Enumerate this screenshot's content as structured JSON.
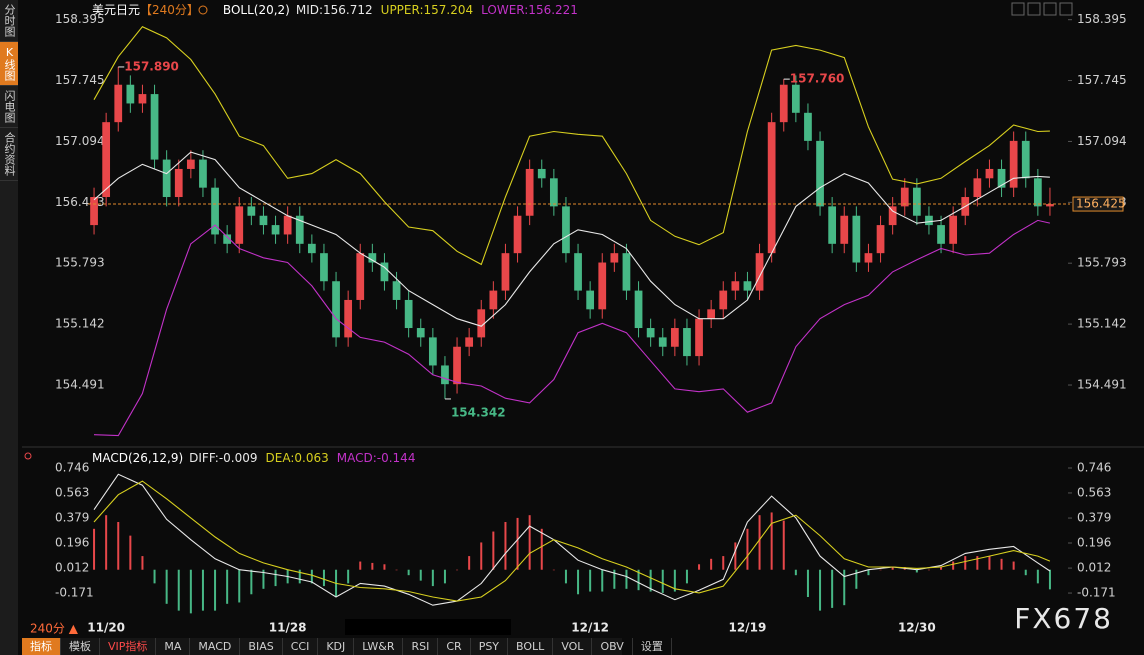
{
  "chart_data": [
    {
      "type": "candlestick",
      "title": "美元日元",
      "period": "【240分】",
      "indicator": "BOLL(20,2)",
      "up_color": "#e8474a",
      "down_color": "#47b886",
      "grid": false,
      "ylim": [
        153.85,
        158.52
      ],
      "yticks": [
        158.395,
        157.745,
        157.094,
        156.443,
        155.793,
        155.142,
        154.491
      ],
      "categories": [
        null,
        "11/20",
        null,
        null,
        null,
        null,
        null,
        null,
        null,
        null,
        null,
        null,
        null,
        null,
        null,
        null,
        "11/28",
        null,
        null,
        null,
        null,
        null,
        null,
        null,
        null,
        null,
        null,
        null,
        null,
        null,
        null,
        null,
        null,
        null,
        null,
        null,
        null,
        null,
        null,
        null,
        null,
        "12/12",
        null,
        null,
        null,
        null,
        null,
        null,
        null,
        null,
        null,
        null,
        null,
        null,
        "12/19",
        null,
        null,
        null,
        null,
        null,
        null,
        null,
        null,
        null,
        null,
        null,
        null,
        null,
        "12/30",
        null,
        null,
        null,
        null,
        null,
        null,
        null,
        null,
        null,
        null,
        null
      ],
      "candles": [
        [
          156.2,
          156.6,
          156.1,
          156.5
        ],
        [
          156.5,
          157.4,
          156.4,
          157.3
        ],
        [
          157.3,
          157.89,
          157.2,
          157.7
        ],
        [
          157.7,
          157.8,
          157.4,
          157.5
        ],
        [
          157.5,
          157.7,
          157.4,
          157.6
        ],
        [
          157.6,
          157.7,
          156.8,
          156.9
        ],
        [
          156.9,
          157.0,
          156.4,
          156.5
        ],
        [
          156.5,
          156.9,
          156.4,
          156.8
        ],
        [
          156.8,
          157.0,
          156.7,
          156.9
        ],
        [
          156.9,
          157.0,
          156.5,
          156.6
        ],
        [
          156.6,
          156.7,
          156.0,
          156.1
        ],
        [
          156.1,
          156.2,
          155.9,
          156.0
        ],
        [
          156.0,
          156.5,
          155.9,
          156.4
        ],
        [
          156.4,
          156.5,
          156.2,
          156.3
        ],
        [
          156.3,
          156.4,
          156.1,
          156.2
        ],
        [
          156.2,
          156.3,
          156.0,
          156.1
        ],
        [
          156.1,
          156.4,
          156.0,
          156.3
        ],
        [
          156.3,
          156.4,
          155.9,
          156.0
        ],
        [
          156.0,
          156.1,
          155.8,
          155.9
        ],
        [
          155.9,
          156.0,
          155.5,
          155.6
        ],
        [
          155.6,
          155.7,
          154.9,
          155.0
        ],
        [
          155.0,
          155.5,
          154.9,
          155.4
        ],
        [
          155.4,
          156.0,
          155.3,
          155.9
        ],
        [
          155.9,
          156.0,
          155.7,
          155.8
        ],
        [
          155.8,
          155.9,
          155.5,
          155.6
        ],
        [
          155.6,
          155.7,
          155.3,
          155.4
        ],
        [
          155.4,
          155.5,
          155.0,
          155.1
        ],
        [
          155.1,
          155.2,
          154.9,
          155.0
        ],
        [
          155.0,
          155.1,
          154.6,
          154.7
        ],
        [
          154.7,
          154.8,
          154.342,
          154.5
        ],
        [
          154.5,
          155.0,
          154.4,
          154.9
        ],
        [
          154.9,
          155.1,
          154.8,
          155.0
        ],
        [
          155.0,
          155.4,
          154.9,
          155.3
        ],
        [
          155.3,
          155.6,
          155.2,
          155.5
        ],
        [
          155.5,
          156.0,
          155.4,
          155.9
        ],
        [
          155.9,
          156.4,
          155.8,
          156.3
        ],
        [
          156.3,
          156.9,
          156.2,
          156.8
        ],
        [
          156.8,
          156.9,
          156.6,
          156.7
        ],
        [
          156.7,
          156.8,
          156.3,
          156.4
        ],
        [
          156.4,
          156.5,
          155.8,
          155.9
        ],
        [
          155.9,
          156.0,
          155.4,
          155.5
        ],
        [
          155.5,
          155.6,
          155.2,
          155.3
        ],
        [
          155.3,
          155.9,
          155.2,
          155.8
        ],
        [
          155.8,
          156.0,
          155.7,
          155.9
        ],
        [
          155.9,
          156.0,
          155.4,
          155.5
        ],
        [
          155.5,
          155.6,
          155.0,
          155.1
        ],
        [
          155.1,
          155.2,
          154.9,
          155.0
        ],
        [
          155.0,
          155.1,
          154.8,
          154.9
        ],
        [
          154.9,
          155.2,
          154.8,
          155.1
        ],
        [
          155.1,
          155.2,
          154.7,
          154.8
        ],
        [
          154.8,
          155.3,
          154.7,
          155.2
        ],
        [
          155.2,
          155.4,
          155.1,
          155.3
        ],
        [
          155.3,
          155.6,
          155.2,
          155.5
        ],
        [
          155.5,
          155.7,
          155.4,
          155.6
        ],
        [
          155.6,
          155.7,
          155.4,
          155.5
        ],
        [
          155.5,
          156.0,
          155.4,
          155.9
        ],
        [
          155.9,
          157.4,
          155.8,
          157.3
        ],
        [
          157.3,
          157.76,
          157.2,
          157.7
        ],
        [
          157.7,
          157.8,
          157.3,
          157.4
        ],
        [
          157.4,
          157.5,
          157.0,
          157.1
        ],
        [
          157.1,
          157.2,
          156.3,
          156.4
        ],
        [
          156.4,
          156.5,
          155.9,
          156.0
        ],
        [
          156.0,
          156.4,
          155.9,
          156.3
        ],
        [
          156.3,
          156.4,
          155.7,
          155.8
        ],
        [
          155.8,
          156.0,
          155.7,
          155.9
        ],
        [
          155.9,
          156.3,
          155.8,
          156.2
        ],
        [
          156.2,
          156.5,
          156.1,
          156.4
        ],
        [
          156.4,
          156.7,
          156.3,
          156.6
        ],
        [
          156.6,
          156.7,
          156.2,
          156.3
        ],
        [
          156.3,
          156.4,
          156.1,
          156.2
        ],
        [
          156.2,
          156.3,
          155.9,
          156.0
        ],
        [
          156.0,
          156.4,
          155.9,
          156.3
        ],
        [
          156.3,
          156.6,
          156.2,
          156.5
        ],
        [
          156.5,
          156.8,
          156.4,
          156.7
        ],
        [
          156.7,
          156.9,
          156.6,
          156.8
        ],
        [
          156.8,
          156.9,
          156.5,
          156.6
        ],
        [
          156.6,
          157.2,
          156.5,
          157.1
        ],
        [
          157.1,
          157.2,
          156.6,
          156.7
        ],
        [
          156.7,
          156.8,
          156.3,
          156.4
        ],
        [
          156.4,
          156.6,
          156.3,
          156.425
        ]
      ],
      "x": [
        0,
        2,
        4,
        6,
        8,
        10,
        12,
        14,
        16,
        18,
        20,
        22,
        24,
        26,
        28,
        30,
        32,
        34,
        36,
        38,
        40,
        42,
        44,
        46,
        48,
        50,
        52,
        54,
        56,
        58,
        60,
        62,
        64,
        66,
        68,
        70,
        72,
        74,
        76,
        78,
        79
      ],
      "series": [
        {
          "name": "MID:156.712",
          "color": "#e8e8e8",
          "values": [
            156.47,
            156.7,
            156.85,
            156.75,
            156.98,
            156.9,
            156.6,
            156.45,
            156.3,
            156.2,
            156.1,
            155.9,
            155.75,
            155.5,
            155.35,
            155.2,
            155.12,
            155.35,
            155.7,
            156.0,
            156.15,
            156.1,
            155.95,
            155.6,
            155.35,
            155.2,
            155.2,
            155.4,
            155.9,
            156.4,
            156.6,
            156.75,
            156.65,
            156.35,
            156.22,
            156.25,
            156.4,
            156.55,
            156.7,
            156.72,
            156.712
          ]
        },
        {
          "name": "UPPER:157.204",
          "color": "#d7cf1f",
          "values": [
            157.54,
            158.0,
            158.32,
            158.2,
            157.97,
            157.6,
            157.15,
            157.05,
            156.7,
            156.75,
            156.9,
            156.75,
            156.45,
            156.18,
            156.14,
            155.92,
            155.78,
            156.5,
            157.15,
            157.2,
            157.17,
            157.15,
            156.75,
            156.25,
            156.08,
            155.99,
            156.12,
            157.2,
            158.07,
            158.12,
            158.07,
            157.99,
            157.25,
            156.69,
            156.64,
            156.7,
            156.88,
            157.05,
            157.27,
            157.2,
            157.204
          ]
        },
        {
          "name": "LOWER:156.221",
          "color": "#c232c8",
          "values": [
            153.96,
            153.95,
            154.4,
            155.3,
            156.0,
            156.2,
            155.95,
            155.85,
            155.8,
            155.55,
            155.2,
            155.0,
            154.95,
            154.82,
            154.6,
            154.52,
            154.48,
            154.35,
            154.3,
            154.55,
            155.05,
            155.15,
            155.05,
            154.75,
            154.45,
            154.42,
            154.45,
            154.2,
            154.3,
            154.9,
            155.2,
            155.35,
            155.45,
            155.7,
            155.83,
            155.95,
            155.88,
            155.9,
            156.1,
            156.25,
            156.221
          ]
        }
      ],
      "annotations": [
        {
          "value": 157.89,
          "label": "157.890"
        },
        {
          "value": 154.342,
          "label": "154.342"
        },
        {
          "value": 157.76,
          "label": "157.760"
        }
      ],
      "last_price": {
        "value": 156.425,
        "label": "156.425"
      }
    },
    {
      "type": "macd",
      "indicator": "MACD(26,12,9)",
      "grid": false,
      "ylim": [
        -0.31,
        0.79
      ],
      "yticks": [
        0.746,
        0.563,
        0.379,
        0.196,
        0.012,
        -0.171
      ],
      "x": [
        0,
        2,
        4,
        6,
        8,
        10,
        12,
        14,
        16,
        18,
        20,
        22,
        24,
        26,
        28,
        30,
        32,
        34,
        36,
        38,
        40,
        42,
        44,
        46,
        48,
        50,
        52,
        54,
        56,
        58,
        60,
        62,
        64,
        66,
        68,
        70,
        72,
        74,
        76,
        78,
        79
      ],
      "series": [
        {
          "name": "DIFF:-0.009",
          "color": "#e8e8e8",
          "values": [
            0.44,
            0.7,
            0.62,
            0.37,
            0.22,
            0.08,
            0.0,
            -0.02,
            -0.05,
            -0.09,
            -0.2,
            -0.1,
            -0.12,
            -0.18,
            -0.26,
            -0.23,
            -0.1,
            0.12,
            0.32,
            0.22,
            0.07,
            0.0,
            -0.05,
            -0.14,
            -0.22,
            -0.15,
            -0.07,
            0.35,
            0.54,
            0.38,
            0.1,
            -0.05,
            0.0,
            0.02,
            0.0,
            0.03,
            0.12,
            0.15,
            0.17,
            0.05,
            -0.009
          ]
        },
        {
          "name": "DEA:0.063",
          "color": "#d7cf1f",
          "values": [
            0.35,
            0.55,
            0.65,
            0.52,
            0.38,
            0.24,
            0.12,
            0.05,
            0.0,
            -0.04,
            -0.1,
            -0.13,
            -0.14,
            -0.16,
            -0.2,
            -0.23,
            -0.2,
            -0.08,
            0.12,
            0.22,
            0.16,
            0.08,
            0.02,
            -0.06,
            -0.14,
            -0.17,
            -0.12,
            0.1,
            0.34,
            0.4,
            0.25,
            0.08,
            0.02,
            0.02,
            0.01,
            0.02,
            0.06,
            0.1,
            0.14,
            0.1,
            0.063
          ]
        }
      ],
      "histogram": {
        "name": "MACD:-0.144",
        "color": "#c232c8",
        "up_color": "#e8474a",
        "down_color": "#47b886",
        "values": [
          0.3,
          0.4,
          0.35,
          0.25,
          0.1,
          -0.1,
          -0.25,
          -0.3,
          -0.32,
          -0.3,
          -0.3,
          -0.25,
          -0.24,
          -0.18,
          -0.14,
          -0.12,
          -0.1,
          -0.1,
          -0.1,
          -0.12,
          -0.2,
          -0.1,
          0.06,
          0.05,
          0.04,
          0.0,
          -0.04,
          -0.08,
          -0.12,
          -0.1,
          0.0,
          0.1,
          0.2,
          0.28,
          0.35,
          0.38,
          0.4,
          0.3,
          0.0,
          -0.1,
          -0.18,
          -0.16,
          -0.16,
          -0.14,
          -0.14,
          -0.15,
          -0.16,
          -0.17,
          -0.16,
          -0.1,
          0.04,
          0.08,
          0.1,
          0.2,
          0.3,
          0.4,
          0.42,
          0.36,
          -0.04,
          -0.2,
          -0.3,
          -0.28,
          -0.26,
          -0.14,
          -0.04,
          0.0,
          0.02,
          0.02,
          -0.02,
          0.0,
          0.02,
          0.06,
          0.1,
          0.1,
          0.1,
          0.08,
          0.06,
          -0.04,
          -0.1,
          -0.144
        ]
      }
    }
  ],
  "ui": {
    "sidebar_tabs": [
      "分时图",
      "K线图",
      "闪电图",
      "合约资料"
    ],
    "bottom_tabs": [
      "指标",
      "模板",
      "VIP指标",
      "MA",
      "MACD",
      "BIAS",
      "CCI",
      "KDJ",
      "LW&R",
      "RSI",
      "CR",
      "PSY",
      "BOLL",
      "VOL",
      "OBV",
      "设置"
    ],
    "period_selector": "240分 ▲",
    "watermark": "FX678"
  }
}
